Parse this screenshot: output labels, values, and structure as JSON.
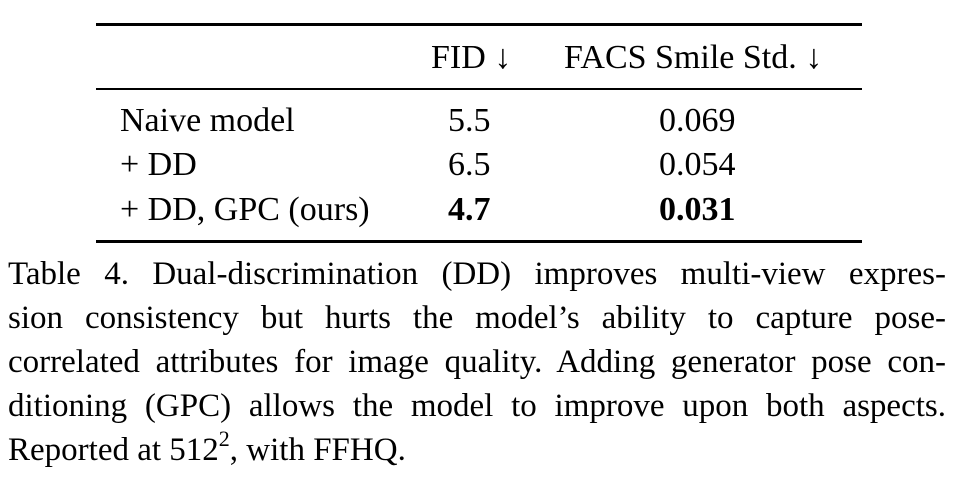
{
  "table": {
    "headers": {
      "method": "",
      "fid": "FID ↓",
      "facs": "FACS Smile Std. ↓"
    },
    "rows": [
      {
        "method": "Naive model",
        "fid": "5.5",
        "facs": "0.069",
        "bold": false
      },
      {
        "method": "+ DD",
        "fid": "6.5",
        "facs": "0.054",
        "bold": false
      },
      {
        "method": "+ DD, GPC (ours)",
        "fid": "4.7",
        "facs": "0.031",
        "bold": true
      }
    ]
  },
  "caption": {
    "lines": [
      "Table 4.  Dual-discrimination (DD) improves multi-view expres-",
      "sion consistency but hurts the model’s ability to capture pose-",
      "correlated attributes for image quality. Adding generator pose con-",
      "ditioning (GPC) allows the model to improve upon both aspects."
    ],
    "last_line_prefix": "Reported at ",
    "math_base": "512",
    "math_exp": "2",
    "last_line_suffix": ", with FFHQ."
  }
}
